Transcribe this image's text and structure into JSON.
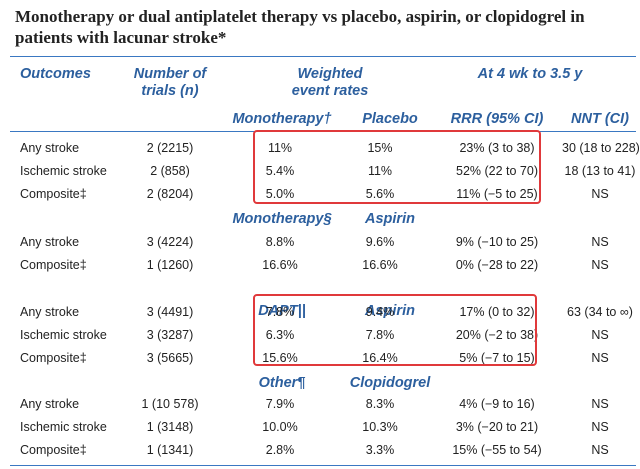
{
  "title": "Monotherapy or dual antiplatelet therapy vs placebo, aspirin, or clopidogrel in patients with lacunar stroke*",
  "header": {
    "outcomes": "Outcomes",
    "trials_line1": "Number of",
    "trials_line2": "trials (n)",
    "rates_line1": "Weighted",
    "rates_line2": "event rates",
    "period": "At 4 wk to 3.5 y",
    "treatment": "Monotherapy†",
    "control": "Placebo",
    "rrr": "RRR (95% CI)",
    "nnt": "NNT (CI)"
  },
  "groups": [
    {
      "rows": [
        {
          "outcome": "Any stroke",
          "trials": "2 (2215)",
          "treatment": "11%",
          "control": "15%",
          "rrr": "23% (3 to 38)",
          "nnt": "30 (18 to 228)"
        },
        {
          "outcome": "Ischemic stroke",
          "trials": "2 (858)",
          "treatment": "5.4%",
          "control": "11%",
          "rrr": "52% (22 to 70)",
          "nnt": "18 (13 to 41)"
        },
        {
          "outcome": "Composite‡",
          "trials": "2 (8204)",
          "treatment": "5.0%",
          "control": "5.6%",
          "rrr": "11% (−5 to 25)",
          "nnt": "NS"
        }
      ]
    },
    {
      "treatment_label": "Monotherapy§",
      "control_label": "Aspirin",
      "rows": [
        {
          "outcome": "Any stroke",
          "trials": "3 (4224)",
          "treatment": "8.8%",
          "control": "9.6%",
          "rrr": "9% (−10 to 25)",
          "nnt": "NS"
        },
        {
          "outcome": "Composite‡",
          "trials": "1 (1260)",
          "treatment": "16.6%",
          "control": "16.6%",
          "rrr": "0% (−28 to 22)",
          "nnt": "NS"
        }
      ]
    },
    {
      "treatment_label": "DAPT||",
      "control_label": "Aspirin",
      "rows": [
        {
          "outcome": "Any stroke",
          "trials": "3 (4491)",
          "treatment": "7.8%",
          "control": "9.4%",
          "rrr": "17% (0 to 32)",
          "nnt": "63 (34 to ∞)"
        },
        {
          "outcome": "Ischemic stroke",
          "trials": "3 (3287)",
          "treatment": "6.3%",
          "control": "7.8%",
          "rrr": "20% (−2 to 38)",
          "nnt": "NS"
        },
        {
          "outcome": "Composite‡",
          "trials": "3 (5665)",
          "treatment": "15.6%",
          "control": "16.4%",
          "rrr": "5% (−7 to 15)",
          "nnt": "NS"
        }
      ]
    },
    {
      "treatment_label": "Other¶",
      "control_label": "Clopidogrel",
      "rows": [
        {
          "outcome": "Any stroke",
          "trials": "1 (10 578)",
          "treatment": "7.9%",
          "control": "8.3%",
          "rrr": "4% (−9 to 16)",
          "nnt": "NS"
        },
        {
          "outcome": "Ischemic stroke",
          "trials": "1 (3148)",
          "treatment": "10.0%",
          "control": "10.3%",
          "rrr": "3% (−20 to 21)",
          "nnt": "NS"
        },
        {
          "outcome": "Composite‡",
          "trials": "1 (1341)",
          "treatment": "2.8%",
          "control": "3.3%",
          "rrr": "15% (−55 to 54)",
          "nnt": "NS"
        }
      ]
    }
  ],
  "colors": {
    "header_blue": "#2c5f9e",
    "highlight_red": "#e0393b",
    "rule_blue": "#3a78c2"
  }
}
